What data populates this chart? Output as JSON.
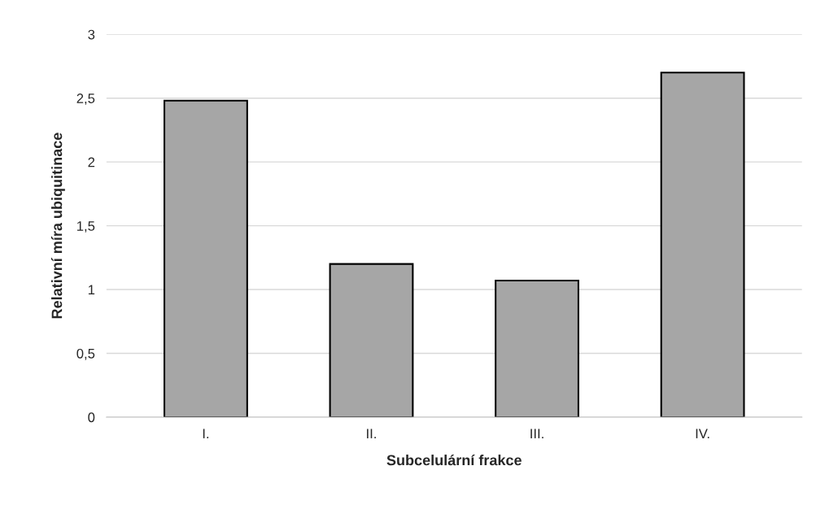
{
  "chart_data": {
    "type": "bar",
    "xlabel": "Subcelulární frakce",
    "ylabel": "Relativní míra ubiquitinace",
    "categories": [
      "I.",
      "II.",
      "III.",
      "IV."
    ],
    "series": [
      {
        "color": "#a6a6a6",
        "values": [
          2.48,
          1.2,
          1.07,
          2.7
        ]
      }
    ],
    "ylim": [
      0,
      3
    ],
    "yticks": [
      0,
      {
        "value": 0.5,
        "label": "0,5"
      },
      1,
      {
        "value": 1.5,
        "label": "1,5"
      },
      2,
      {
        "value": 2.5,
        "label": "2,5"
      },
      3
    ],
    "grid": "y",
    "legend": false
  }
}
